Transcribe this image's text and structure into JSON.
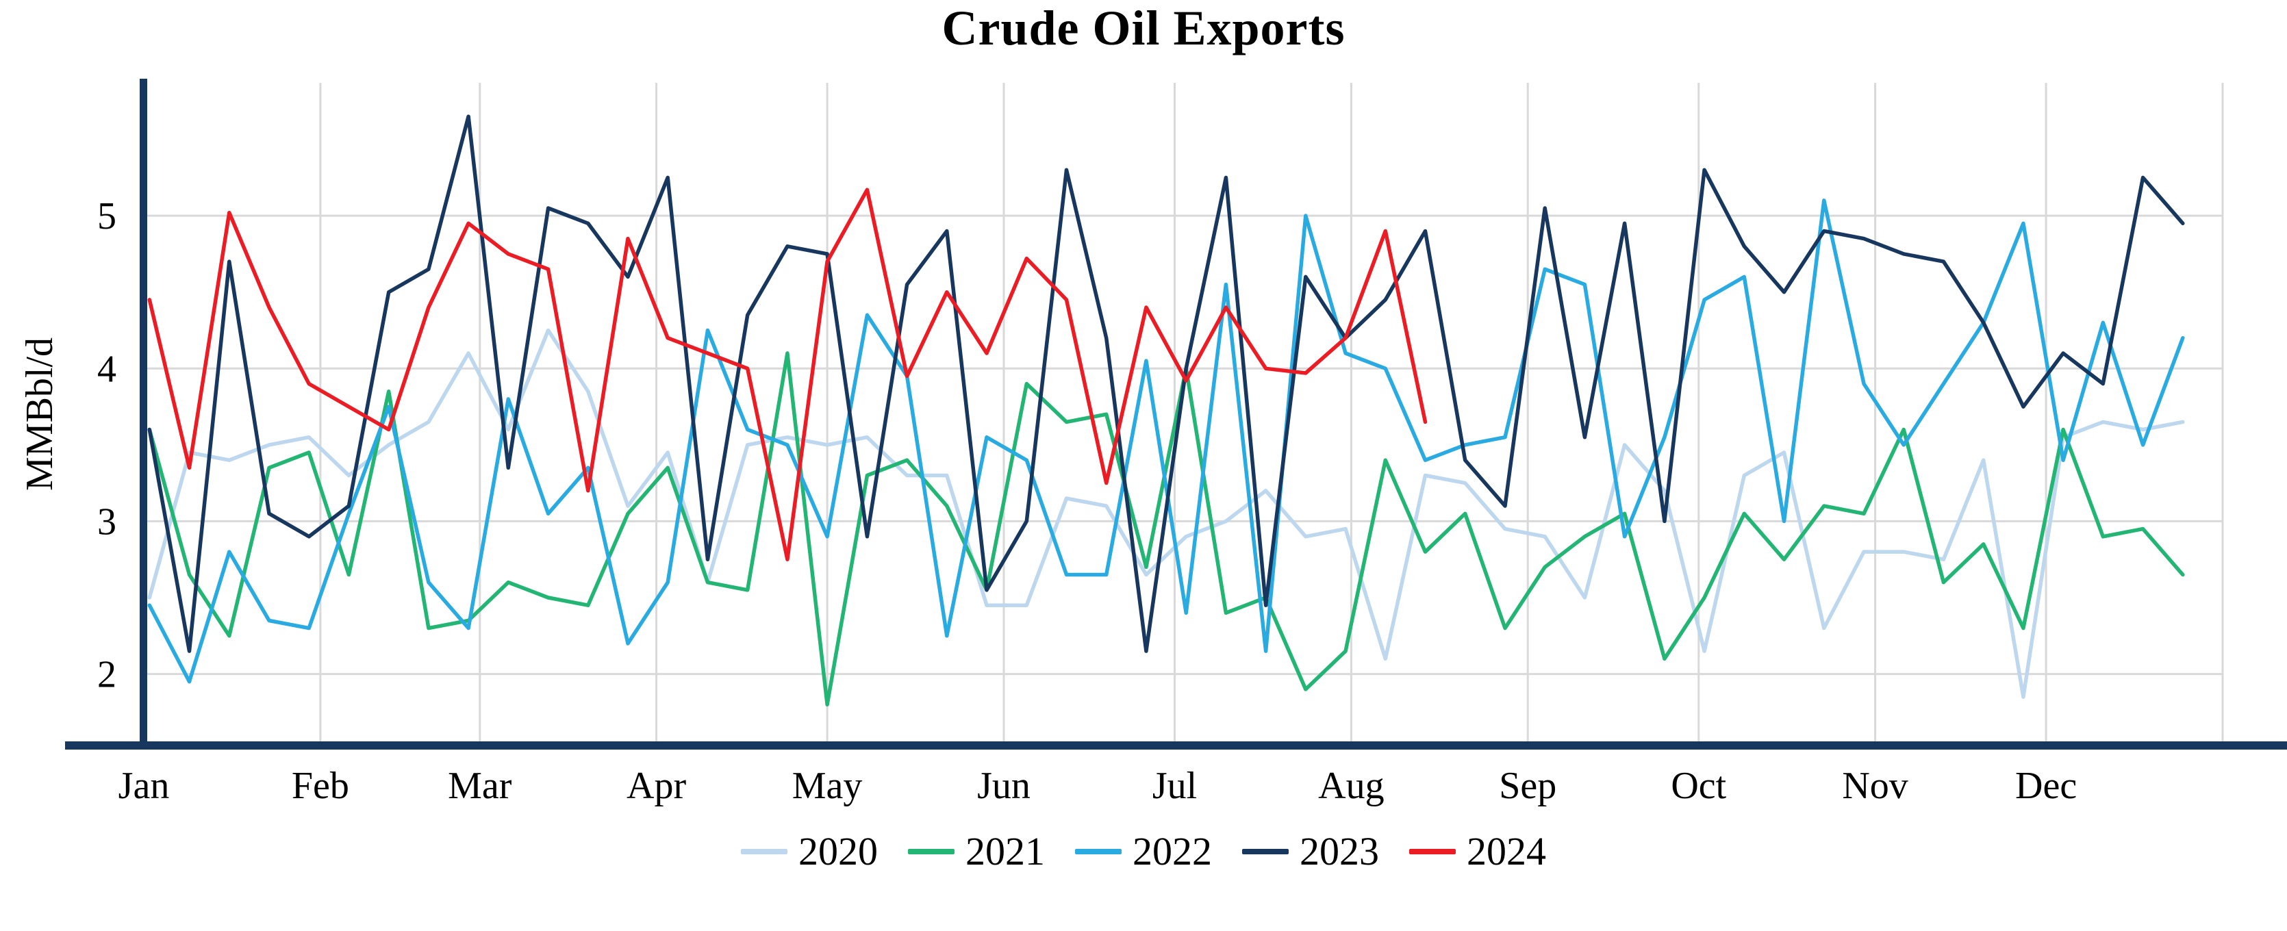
{
  "title": "Crude Oil Exports",
  "chart_data": {
    "type": "line",
    "title": "Crude Oil Exports",
    "xlabel": "",
    "ylabel": "MMBbl/d",
    "x_unit": "weekly points across one year",
    "categories": [
      "Jan",
      "Feb",
      "Mar",
      "Apr",
      "May",
      "Jun",
      "Jul",
      "Aug",
      "Sep",
      "Oct",
      "Nov",
      "Dec"
    ],
    "month_day_offsets": [
      0,
      31,
      59,
      90,
      120,
      151,
      181,
      212,
      243,
      273,
      304,
      334,
      365
    ],
    "days_in_year": 365,
    "yticks": [
      2,
      3,
      4,
      5
    ],
    "ylim": [
      1.55,
      5.87
    ],
    "grid": true,
    "legend_position": "bottom",
    "grid_color": "#d9d9d9",
    "axis_color": "#17375e",
    "series": [
      {
        "name": "2020",
        "color": "#bdd7ee",
        "values": [
          2.5,
          3.45,
          3.4,
          3.5,
          3.55,
          3.3,
          3.5,
          3.65,
          4.1,
          3.6,
          4.25,
          3.85,
          3.1,
          3.45,
          2.6,
          3.5,
          3.55,
          3.5,
          3.55,
          3.3,
          3.3,
          2.45,
          2.45,
          3.15,
          3.1,
          2.65,
          2.9,
          3.0,
          3.2,
          2.9,
          2.95,
          2.1,
          3.3,
          3.25,
          2.95,
          2.9,
          2.5,
          3.5,
          3.2,
          2.15,
          3.3,
          3.45,
          2.3,
          2.8,
          2.8,
          2.75,
          3.4,
          1.85,
          3.55,
          3.65,
          3.6,
          3.65
        ]
      },
      {
        "name": "2021",
        "color": "#22b573",
        "values": [
          3.6,
          2.65,
          2.25,
          3.35,
          3.45,
          2.65,
          3.85,
          2.3,
          2.35,
          2.6,
          2.5,
          2.45,
          3.05,
          3.35,
          2.6,
          2.55,
          4.1,
          1.8,
          3.3,
          3.4,
          3.1,
          2.55,
          3.9,
          3.65,
          3.7,
          2.7,
          4.0,
          2.4,
          2.5,
          1.9,
          2.15,
          3.4,
          2.8,
          3.05,
          2.3,
          2.7,
          2.9,
          3.05,
          2.1,
          2.5,
          3.05,
          2.75,
          3.1,
          3.05,
          3.6,
          2.6,
          2.85,
          2.3,
          3.6,
          2.9,
          2.95,
          2.65
        ]
      },
      {
        "name": "2022",
        "color": "#29abe2",
        "values": [
          2.45,
          1.95,
          2.8,
          2.35,
          2.3,
          3.05,
          3.75,
          2.6,
          2.3,
          3.8,
          3.05,
          3.35,
          2.2,
          2.6,
          4.25,
          3.6,
          3.5,
          2.9,
          4.35,
          3.95,
          2.25,
          3.55,
          3.4,
          2.65,
          2.65,
          4.05,
          2.4,
          4.55,
          2.15,
          5.0,
          4.1,
          4.0,
          3.4,
          3.5,
          3.55,
          4.65,
          4.55,
          2.9,
          3.55,
          4.45,
          4.6,
          3.0,
          5.1,
          3.9,
          3.5,
          3.9,
          4.3,
          4.95,
          3.4,
          4.3,
          3.5,
          4.2
        ]
      },
      {
        "name": "2023",
        "color": "#17375e",
        "values": [
          3.6,
          2.15,
          4.7,
          3.05,
          2.9,
          3.1,
          4.5,
          4.65,
          5.65,
          3.35,
          5.05,
          4.95,
          4.6,
          5.25,
          2.75,
          4.35,
          4.8,
          4.75,
          2.9,
          4.55,
          4.9,
          2.55,
          3.0,
          5.3,
          4.2,
          2.15,
          4.0,
          5.25,
          2.45,
          4.6,
          4.2,
          4.45,
          4.9,
          3.4,
          3.1,
          5.05,
          3.55,
          4.95,
          3.0,
          5.3,
          4.8,
          4.5,
          4.9,
          4.85,
          4.75,
          4.7,
          4.3,
          3.75,
          4.1,
          3.9,
          5.25,
          4.95
        ]
      },
      {
        "name": "2024",
        "color": "#ec1c24",
        "values": [
          4.45,
          3.35,
          5.02,
          4.4,
          3.9,
          3.75,
          3.6,
          4.4,
          4.95,
          4.75,
          4.65,
          3.2,
          4.85,
          4.2,
          4.1,
          4.0,
          2.75,
          4.7,
          5.17,
          3.95,
          4.5,
          4.1,
          4.72,
          4.45,
          3.25,
          4.4,
          3.92,
          4.4,
          4.0,
          3.97,
          4.2,
          4.9,
          3.65
        ]
      }
    ]
  }
}
